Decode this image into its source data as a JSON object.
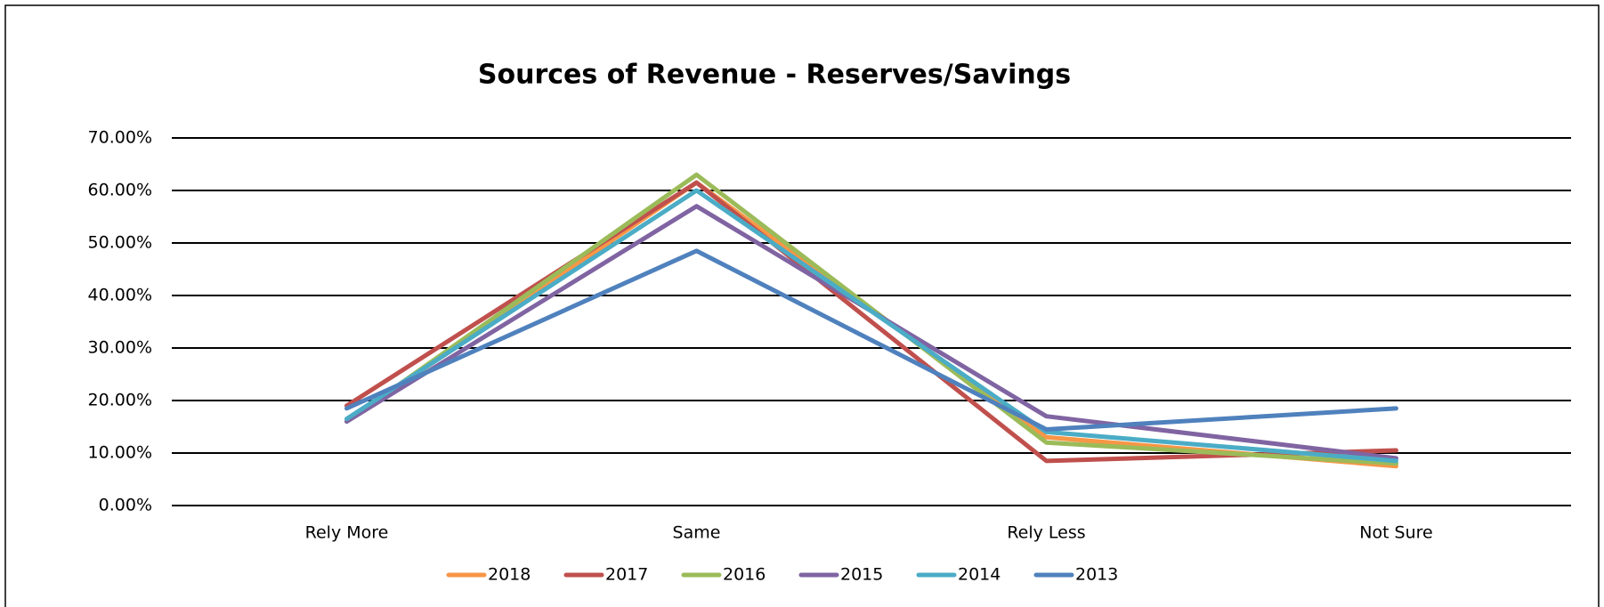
{
  "chart_data": {
    "type": "line",
    "title": "Sources of Revenue -  Reserves/Savings",
    "categories": [
      "Rely More",
      "Same",
      "Rely Less",
      "Not Sure"
    ],
    "series": [
      {
        "name": "2018",
        "color": "#f79646",
        "values": [
          16,
          61.5,
          13,
          7.5
        ]
      },
      {
        "name": "2017",
        "color": "#c0504d",
        "values": [
          19,
          61.5,
          8.5,
          10.5
        ]
      },
      {
        "name": "2016",
        "color": "#9bbb59",
        "values": [
          16,
          63,
          12,
          8
        ]
      },
      {
        "name": "2015",
        "color": "#8064a2",
        "values": [
          16,
          57,
          17,
          9
        ]
      },
      {
        "name": "2014",
        "color": "#4bacc6",
        "values": [
          16.5,
          60,
          14,
          8.5
        ]
      },
      {
        "name": "2013",
        "color": "#4f81bd",
        "values": [
          18.5,
          48.5,
          14.5,
          18.5
        ]
      }
    ],
    "ylim": [
      0,
      70
    ],
    "yticks": [
      {
        "value": 0,
        "label": "0.00%"
      },
      {
        "value": 10,
        "label": "10.00%"
      },
      {
        "value": 20,
        "label": "20.00%"
      },
      {
        "value": 30,
        "label": "30.00%"
      },
      {
        "value": 40,
        "label": "40.00%"
      },
      {
        "value": 50,
        "label": "50.00%"
      },
      {
        "value": 60,
        "label": "60.00%"
      },
      {
        "value": 70,
        "label": "70.00%"
      }
    ],
    "grid": true,
    "legend": "bottom"
  }
}
